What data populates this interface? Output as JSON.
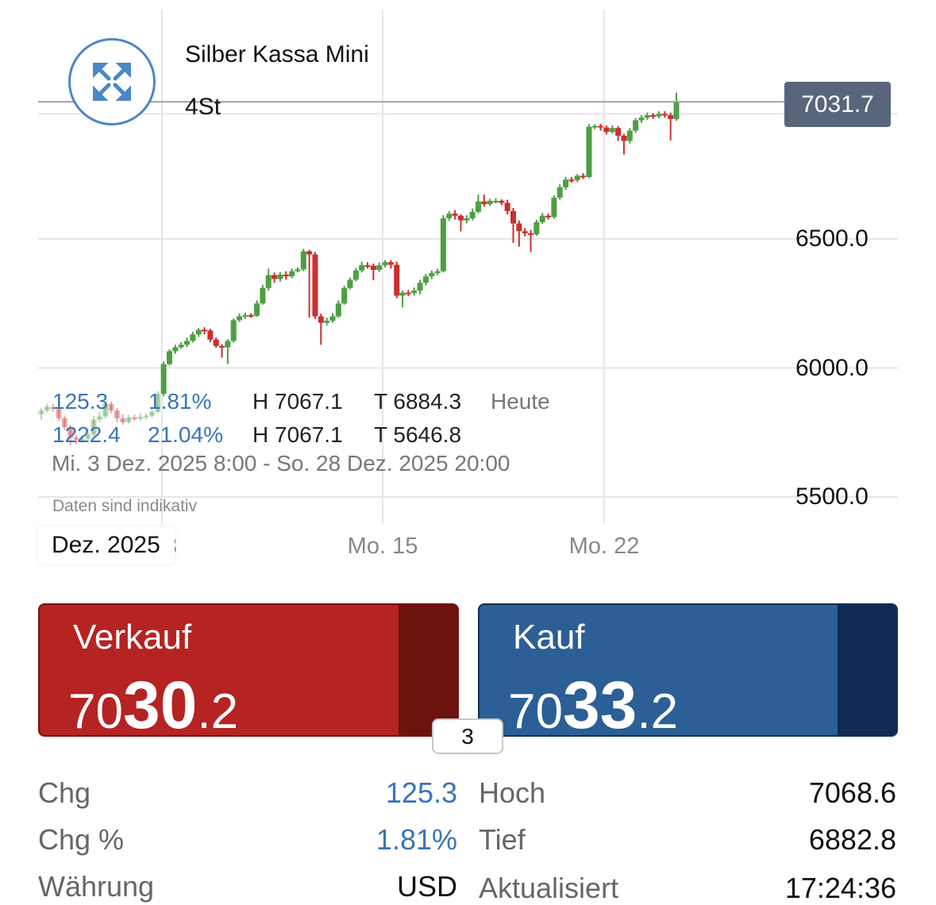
{
  "instrument": {
    "name": "Silber Kassa Mini",
    "interval": "4St"
  },
  "chart": {
    "last_price_tag": "7031.7",
    "y_ticks": [
      "6500.0",
      "6000.0",
      "5500.0"
    ],
    "x_ticks": [
      "3",
      "Mo. 15",
      "Mo. 22"
    ],
    "month_label": "Dez. 2025",
    "colors": {
      "up": "#4e9f44",
      "down": "#cc2e2e",
      "grid": "#e6e6e6",
      "last_line": "#9aa0a8"
    }
  },
  "overlay": {
    "today": {
      "chg": "125.3",
      "chg_pct": "1.81%",
      "high": "H 7067.1",
      "low": "T 6884.3",
      "label": "Heute"
    },
    "range": {
      "chg": "1222.4",
      "chg_pct": "21.04%",
      "high": "H 7067.1",
      "low": "T 5646.8"
    },
    "period": "Mi. 3 Dez. 2025 8:00 - So. 28 Dez. 2025 20:00",
    "disclaimer": "Daten sind indikativ"
  },
  "chart_data": {
    "type": "candlestick",
    "y_range": [
      5450,
      7100
    ],
    "y_axis_ticks": [
      5500,
      6000,
      6500
    ],
    "x_axis_ticks": [
      "3",
      "Mo. 15",
      "Mo. 22"
    ],
    "last_price": 7031.7,
    "candles": [
      [
        5820,
        5835,
        5800,
        5845
      ],
      [
        5835,
        5850,
        5828,
        5862
      ],
      [
        5848,
        5842,
        5830,
        5860
      ],
      [
        5840,
        5805,
        5795,
        5850
      ],
      [
        5805,
        5770,
        5760,
        5815
      ],
      [
        5770,
        5730,
        5700,
        5780
      ],
      [
        5730,
        5722,
        5705,
        5742
      ],
      [
        5722,
        5726,
        5710,
        5740
      ],
      [
        5726,
        5742,
        5720,
        5752
      ],
      [
        5742,
        5800,
        5735,
        5815
      ],
      [
        5800,
        5812,
        5790,
        5830
      ],
      [
        5812,
        5860,
        5805,
        5870
      ],
      [
        5860,
        5835,
        5825,
        5870
      ],
      [
        5835,
        5805,
        5790,
        5845
      ],
      [
        5805,
        5790,
        5780,
        5820
      ],
      [
        5790,
        5808,
        5785,
        5818
      ],
      [
        5808,
        5805,
        5795,
        5820
      ],
      [
        5805,
        5810,
        5795,
        5825
      ],
      [
        5810,
        5815,
        5800,
        5826
      ],
      [
        5815,
        5830,
        5808,
        5840
      ],
      [
        5830,
        5900,
        5825,
        5910
      ],
      [
        5900,
        6015,
        5890,
        6025
      ],
      [
        6015,
        6065,
        6010,
        6072
      ],
      [
        6065,
        6080,
        6055,
        6090
      ],
      [
        6080,
        6090,
        6075,
        6100
      ],
      [
        6090,
        6105,
        6080,
        6118
      ],
      [
        6105,
        6130,
        6098,
        6140
      ],
      [
        6130,
        6148,
        6120,
        6155
      ],
      [
        6148,
        6145,
        6130,
        6158
      ],
      [
        6145,
        6110,
        6100,
        6152
      ],
      [
        6110,
        6085,
        6078,
        6118
      ],
      [
        6085,
        6080,
        6040,
        6092
      ],
      [
        6080,
        6105,
        6015,
        6112
      ],
      [
        6105,
        6185,
        6098,
        6192
      ],
      [
        6185,
        6200,
        6178,
        6212
      ],
      [
        6200,
        6205,
        6190,
        6215
      ],
      [
        6205,
        6202,
        6195,
        6212
      ],
      [
        6202,
        6250,
        6198,
        6262
      ],
      [
        6250,
        6310,
        6245,
        6322
      ],
      [
        6310,
        6360,
        6300,
        6385
      ],
      [
        6360,
        6345,
        6330,
        6370
      ],
      [
        6345,
        6362,
        6335,
        6372
      ],
      [
        6362,
        6355,
        6342,
        6375
      ],
      [
        6355,
        6375,
        6348,
        6385
      ],
      [
        6375,
        6382,
        6370,
        6390
      ],
      [
        6382,
        6452,
        6375,
        6462
      ],
      [
        6452,
        6440,
        6195,
        6458
      ],
      [
        6440,
        6200,
        6190,
        6450
      ],
      [
        6200,
        6175,
        6090,
        6210
      ],
      [
        6175,
        6183,
        6165,
        6195
      ],
      [
        6183,
        6200,
        6175,
        6212
      ],
      [
        6200,
        6250,
        6195,
        6262
      ],
      [
        6250,
        6310,
        6245,
        6318
      ],
      [
        6310,
        6342,
        6305,
        6350
      ],
      [
        6342,
        6378,
        6335,
        6388
      ],
      [
        6378,
        6398,
        6370,
        6412
      ],
      [
        6398,
        6396,
        6385,
        6410
      ],
      [
        6396,
        6380,
        6340,
        6405
      ],
      [
        6380,
        6398,
        6372,
        6408
      ],
      [
        6398,
        6410,
        6390,
        6418
      ],
      [
        6410,
        6400,
        6385,
        6418
      ],
      [
        6400,
        6280,
        6270,
        6412
      ],
      [
        6280,
        6292,
        6235,
        6300
      ],
      [
        6292,
        6290,
        6278,
        6302
      ],
      [
        6290,
        6300,
        6280,
        6312
      ],
      [
        6300,
        6330,
        6285,
        6342
      ],
      [
        6330,
        6355,
        6320,
        6365
      ],
      [
        6355,
        6368,
        6345,
        6378
      ],
      [
        6368,
        6375,
        6360,
        6385
      ],
      [
        6375,
        6580,
        6370,
        6592
      ],
      [
        6580,
        6598,
        6570,
        6608
      ],
      [
        6598,
        6590,
        6575,
        6612
      ],
      [
        6590,
        6572,
        6530,
        6595
      ],
      [
        6572,
        6580,
        6560,
        6592
      ],
      [
        6580,
        6605,
        6572,
        6618
      ],
      [
        6605,
        6645,
        6600,
        6672
      ],
      [
        6645,
        6635,
        6625,
        6672
      ],
      [
        6635,
        6648,
        6628,
        6656
      ],
      [
        6648,
        6648,
        6638,
        6658
      ],
      [
        6648,
        6640,
        6630,
        6654
      ],
      [
        6640,
        6608,
        6595,
        6652
      ],
      [
        6608,
        6560,
        6485,
        6620
      ],
      [
        6560,
        6530,
        6470,
        6572
      ],
      [
        6530,
        6522,
        6510,
        6542
      ],
      [
        6522,
        6518,
        6450,
        6535
      ],
      [
        6518,
        6565,
        6512,
        6575
      ],
      [
        6565,
        6590,
        6558,
        6600
      ],
      [
        6590,
        6585,
        6575,
        6598
      ],
      [
        6585,
        6660,
        6578,
        6670
      ],
      [
        6660,
        6700,
        6652,
        6712
      ],
      [
        6700,
        6730,
        6690,
        6740
      ],
      [
        6730,
        6728,
        6718,
        6740
      ],
      [
        6728,
        6745,
        6720,
        6752
      ],
      [
        6745,
        6740,
        6732,
        6755
      ],
      [
        6740,
        6935,
        6735,
        6945
      ],
      [
        6935,
        6938,
        6925,
        6945
      ],
      [
        6938,
        6932,
        6920,
        6946
      ],
      [
        6932,
        6915,
        6905,
        6940
      ],
      [
        6915,
        6930,
        6908,
        6940
      ],
      [
        6930,
        6900,
        6880,
        6938
      ],
      [
        6900,
        6880,
        6828,
        6908
      ],
      [
        6880,
        6920,
        6870,
        6930
      ],
      [
        6920,
        6960,
        6912,
        6968
      ],
      [
        6960,
        6970,
        6950,
        6980
      ],
      [
        6970,
        6980,
        6962,
        6990
      ],
      [
        6980,
        6975,
        6965,
        6988
      ],
      [
        6975,
        6985,
        6968,
        6995
      ],
      [
        6985,
        6980,
        6970,
        6995
      ],
      [
        6980,
        6965,
        6882,
        6990
      ],
      [
        6965,
        7032,
        6958,
        7067
      ]
    ]
  },
  "trade": {
    "sell_label": "Verkauf",
    "sell_prefix": "70",
    "sell_big": "30",
    "sell_suffix": ".2",
    "buy_label": "Kauf",
    "buy_prefix": "70",
    "buy_big": "33",
    "buy_suffix": ".2",
    "spread": "3"
  },
  "stats": {
    "left": [
      {
        "label": "Chg",
        "value": "125.3"
      },
      {
        "label": "Chg %",
        "value": "1.81%"
      },
      {
        "label": "Währung",
        "value": "USD"
      }
    ],
    "right": [
      {
        "label": "Hoch",
        "value": "7068.6"
      },
      {
        "label": "Tief",
        "value": "6882.8"
      },
      {
        "label": "Aktualisiert",
        "value": "17:24:36"
      }
    ]
  }
}
